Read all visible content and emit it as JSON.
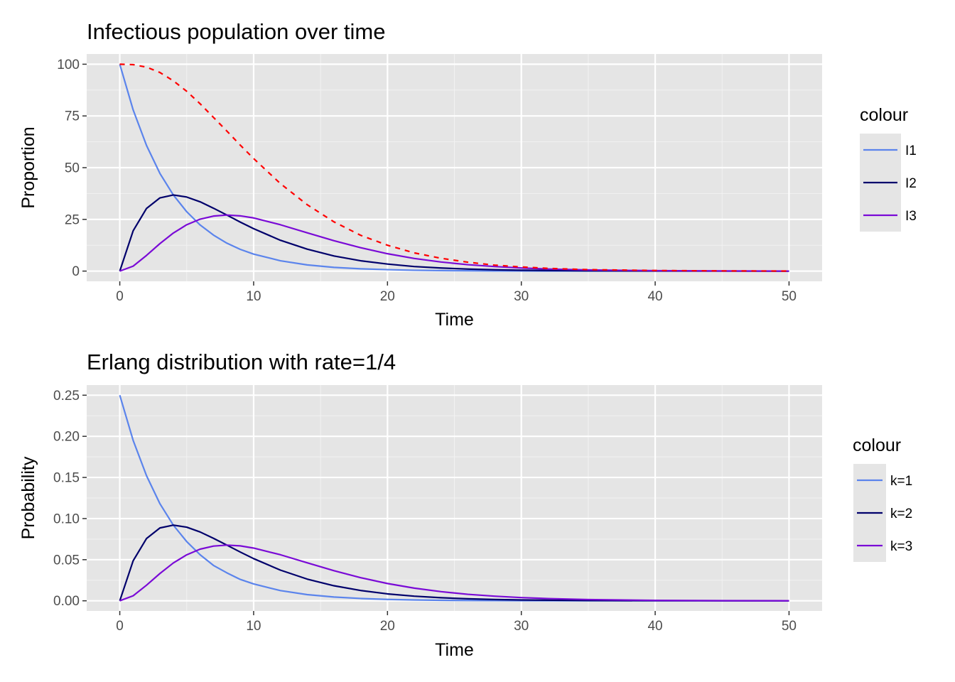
{
  "chart_data": [
    {
      "type": "line",
      "title": "Infectious population over time",
      "xlabel": "Time",
      "ylabel": "Proportion",
      "xlim": [
        0,
        50
      ],
      "ylim": [
        0,
        100
      ],
      "xticks": [
        0,
        10,
        20,
        30,
        40,
        50
      ],
      "xtick_labels": [
        "0",
        "10",
        "20",
        "30",
        "40",
        "50"
      ],
      "yticks": [
        0,
        25,
        50,
        75,
        100
      ],
      "ytick_labels": [
        "0",
        "25",
        "50",
        "75",
        "100"
      ],
      "grid": true,
      "legend": {
        "title": "colour",
        "position": "right",
        "entries": [
          {
            "label": "I1",
            "color": "#5b84ec"
          },
          {
            "label": "I2",
            "color": "#00006b"
          },
          {
            "label": "I3",
            "color": "#7a0ad6"
          }
        ]
      },
      "series": [
        {
          "name": "I1",
          "color": "#5b84ec",
          "dash": false,
          "x": [
            0,
            1,
            2,
            3,
            4,
            5,
            6,
            7,
            8,
            9,
            10,
            12,
            14,
            16,
            18,
            20,
            22,
            24,
            26,
            28,
            30,
            35,
            40,
            45,
            50
          ],
          "y": [
            100,
            77.9,
            60.7,
            47.2,
            36.8,
            28.7,
            22.3,
            17.4,
            13.5,
            10.5,
            8.2,
            5.0,
            3.0,
            1.8,
            1.1,
            0.7,
            0.4,
            0.25,
            0.15,
            0.09,
            0.06,
            0.02,
            0.005,
            0.001,
            0
          ]
        },
        {
          "name": "I2",
          "color": "#00006b",
          "dash": false,
          "x": [
            0,
            1,
            2,
            3,
            4,
            5,
            6,
            7,
            8,
            9,
            10,
            12,
            14,
            16,
            18,
            20,
            22,
            24,
            26,
            28,
            30,
            35,
            40,
            45,
            50
          ],
          "y": [
            0,
            19.5,
            30.3,
            35.4,
            36.8,
            35.8,
            33.5,
            30.4,
            27.1,
            23.7,
            20.5,
            14.9,
            10.6,
            7.3,
            5.0,
            3.4,
            2.2,
            1.5,
            0.97,
            0.63,
            0.41,
            0.14,
            0.05,
            0.015,
            0.005
          ]
        },
        {
          "name": "I3",
          "color": "#7a0ad6",
          "dash": false,
          "x": [
            0,
            1,
            2,
            3,
            4,
            5,
            6,
            7,
            8,
            9,
            10,
            12,
            14,
            16,
            18,
            20,
            22,
            24,
            26,
            28,
            30,
            32,
            35,
            40,
            45,
            50
          ],
          "y": [
            0,
            2.4,
            7.6,
            13.3,
            18.4,
            22.4,
            25.1,
            26.6,
            27.1,
            26.7,
            25.7,
            22.4,
            18.5,
            14.7,
            11.3,
            8.4,
            6.1,
            4.4,
            3.1,
            2.2,
            1.5,
            1.0,
            0.55,
            0.2,
            0.07,
            0.02
          ]
        },
        {
          "name": "",
          "color": "#ff0000",
          "dash": true,
          "x": [
            0,
            1,
            2,
            3,
            4,
            5,
            6,
            7,
            8,
            9,
            10,
            12,
            14,
            16,
            18,
            20,
            22,
            24,
            26,
            28,
            30,
            32,
            35,
            40,
            45,
            50
          ],
          "y": [
            100,
            99.8,
            98.6,
            96.0,
            92.0,
            86.9,
            80.9,
            74.3,
            67.7,
            60.9,
            54.4,
            42.3,
            32.1,
            23.8,
            17.3,
            12.5,
            8.8,
            6.2,
            4.3,
            2.9,
            2.0,
            1.3,
            0.7,
            0.3,
            0.1,
            0.03
          ]
        }
      ]
    },
    {
      "type": "line",
      "title": "Erlang distribution with rate=1/4",
      "xlabel": "Time",
      "ylabel": "Probability",
      "xlim": [
        0,
        50
      ],
      "ylim": [
        0,
        0.25
      ],
      "xticks": [
        0,
        10,
        20,
        30,
        40,
        50
      ],
      "xtick_labels": [
        "0",
        "10",
        "20",
        "30",
        "40",
        "50"
      ],
      "yticks": [
        0,
        0.05,
        0.1,
        0.15,
        0.2,
        0.25
      ],
      "ytick_labels": [
        "0.00",
        "0.05",
        "0.10",
        "0.15",
        "0.20",
        "0.25"
      ],
      "grid": true,
      "legend": {
        "title": "colour",
        "position": "right",
        "entries": [
          {
            "label": "k=1",
            "color": "#5b84ec"
          },
          {
            "label": "k=2",
            "color": "#00006b"
          },
          {
            "label": "k=3",
            "color": "#7a0ad6"
          }
        ]
      },
      "series": [
        {
          "name": "k=1",
          "color": "#5b84ec",
          "dash": false,
          "x": [
            0,
            1,
            2,
            3,
            4,
            5,
            6,
            7,
            8,
            9,
            10,
            12,
            14,
            16,
            18,
            20,
            22,
            24,
            26,
            28,
            30,
            35,
            40,
            45,
            50
          ],
          "y": [
            0.25,
            0.195,
            0.152,
            0.118,
            0.092,
            0.072,
            0.056,
            0.043,
            0.034,
            0.026,
            0.0205,
            0.0124,
            0.0075,
            0.0046,
            0.0028,
            0.0017,
            0.001,
            0.0006,
            0.00037,
            0.00023,
            0.00014,
            4e-05,
            1e-05,
            0,
            0
          ]
        },
        {
          "name": "k=2",
          "color": "#00006b",
          "dash": false,
          "x": [
            0,
            1,
            2,
            3,
            4,
            5,
            6,
            7,
            8,
            9,
            10,
            12,
            14,
            16,
            18,
            20,
            22,
            24,
            26,
            28,
            30,
            35,
            40,
            45,
            50
          ],
          "y": [
            0,
            0.0487,
            0.0758,
            0.0886,
            0.092,
            0.0895,
            0.0837,
            0.076,
            0.0677,
            0.0593,
            0.0513,
            0.0373,
            0.0264,
            0.0183,
            0.0125,
            0.0084,
            0.0056,
            0.0037,
            0.0024,
            0.0016,
            0.001,
            0.00035,
            0.00011,
            4e-05,
            1e-05
          ]
        },
        {
          "name": "k=3",
          "color": "#7a0ad6",
          "dash": false,
          "x": [
            0,
            1,
            2,
            3,
            4,
            5,
            6,
            7,
            8,
            9,
            10,
            12,
            14,
            16,
            18,
            20,
            22,
            24,
            26,
            28,
            30,
            32,
            35,
            40,
            45,
            50
          ],
          "y": [
            0,
            0.0061,
            0.019,
            0.0332,
            0.046,
            0.0559,
            0.0628,
            0.0665,
            0.0677,
            0.0668,
            0.0641,
            0.056,
            0.0462,
            0.0366,
            0.0281,
            0.021,
            0.0154,
            0.0111,
            0.0079,
            0.0056,
            0.0039,
            0.0027,
            0.0015,
            0.0005,
            0.00018,
            6e-05
          ]
        }
      ]
    }
  ]
}
